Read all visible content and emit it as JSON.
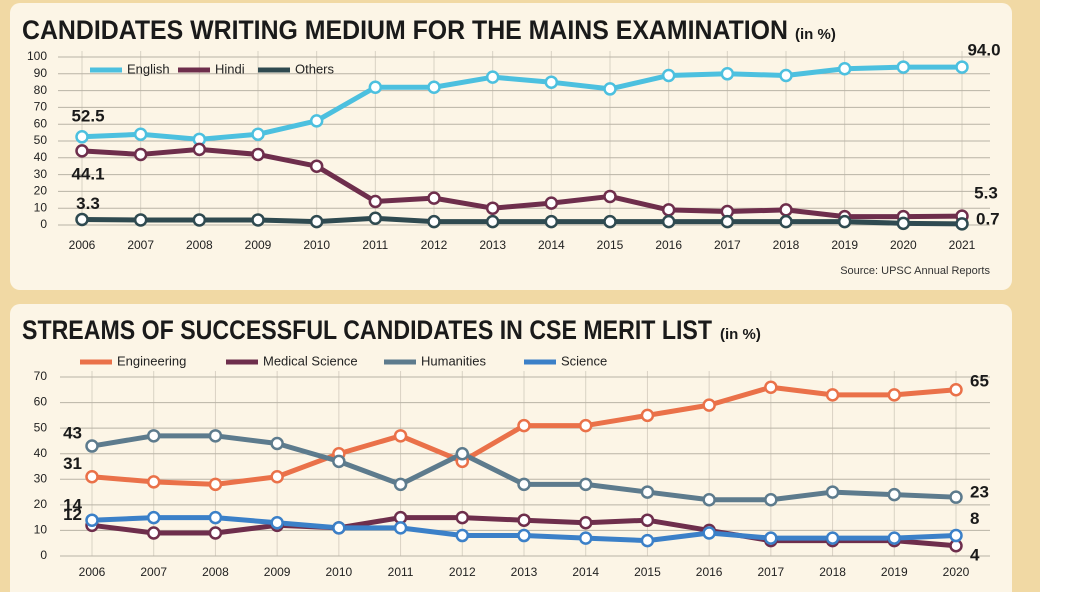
{
  "chart_data": [
    {
      "type": "line",
      "title": "CANDIDATES WRITING MEDIUM FOR THE MAINS EXAMINATION",
      "subtitle": "(in %)",
      "source": "Source: UPSC Annual Reports",
      "categories": [
        "2006",
        "2007",
        "2008",
        "2009",
        "2010",
        "2011",
        "2012",
        "2013",
        "2014",
        "2015",
        "2016",
        "2017",
        "2018",
        "2019",
        "2020",
        "2021"
      ],
      "series": [
        {
          "name": "English",
          "color": "#4cc0df",
          "values": [
            52.5,
            54,
            51,
            54,
            62,
            82,
            82,
            88,
            85,
            81,
            89,
            90,
            89,
            93,
            94,
            94.0
          ],
          "value_labels": [
            "52.5",
            null,
            null,
            null,
            null,
            null,
            null,
            null,
            null,
            null,
            null,
            null,
            null,
            null,
            null,
            "94.0"
          ]
        },
        {
          "name": "Hindi",
          "color": "#6e2e4c",
          "values": [
            44.1,
            42,
            45,
            42,
            35,
            14,
            16,
            10,
            13,
            17,
            9,
            8,
            9,
            5,
            5,
            5.3
          ],
          "value_labels": [
            "44.1",
            null,
            null,
            null,
            null,
            null,
            null,
            null,
            null,
            null,
            null,
            null,
            null,
            null,
            null,
            "5.3"
          ]
        },
        {
          "name": "Others",
          "color": "#2f4a50",
          "values": [
            3.3,
            3,
            3,
            3,
            2,
            4,
            2,
            2,
            2,
            2,
            2,
            2,
            2,
            2,
            1,
            0.7
          ],
          "value_labels": [
            "3.3",
            null,
            null,
            null,
            null,
            null,
            null,
            null,
            null,
            null,
            null,
            null,
            null,
            null,
            null,
            "0.7"
          ]
        }
      ],
      "ylim": [
        0,
        100
      ],
      "yticks": [
        0,
        10,
        20,
        30,
        40,
        50,
        60,
        70,
        80,
        90,
        100
      ],
      "grid": true
    },
    {
      "type": "line",
      "title": "STREAMS OF SUCCESSFUL CANDIDATES IN CSE MERIT LIST",
      "subtitle": "(in %)",
      "categories": [
        "2006",
        "2007",
        "2008",
        "2009",
        "2010",
        "2011",
        "2012",
        "2013",
        "2014",
        "2015",
        "2016",
        "2017",
        "2018",
        "2019",
        "2020"
      ],
      "series": [
        {
          "name": "Engineering",
          "color": "#ea7149",
          "values": [
            31,
            29,
            28,
            31,
            40,
            47,
            37,
            51,
            51,
            55,
            59,
            66,
            63,
            63,
            65
          ]
        },
        {
          "name": "Medical Science",
          "color": "#6e2e4c",
          "values": [
            12,
            9,
            9,
            12,
            11,
            15,
            15,
            14,
            13,
            14,
            10,
            6,
            6,
            6,
            4
          ]
        },
        {
          "name": "Humanities",
          "color": "#5d7b8d",
          "values": [
            43,
            47,
            47,
            44,
            37,
            28,
            40,
            28,
            28,
            25,
            22,
            22,
            25,
            24,
            23
          ]
        },
        {
          "name": "Science",
          "color": "#3b80c8",
          "values": [
            14,
            15,
            15,
            13,
            11,
            11,
            8,
            8,
            7,
            6,
            9,
            7,
            7,
            7,
            8
          ]
        }
      ],
      "ylim": [
        0,
        70
      ],
      "yticks": [
        0,
        10,
        20,
        30,
        40,
        50,
        60,
        70
      ],
      "grid": true
    }
  ]
}
